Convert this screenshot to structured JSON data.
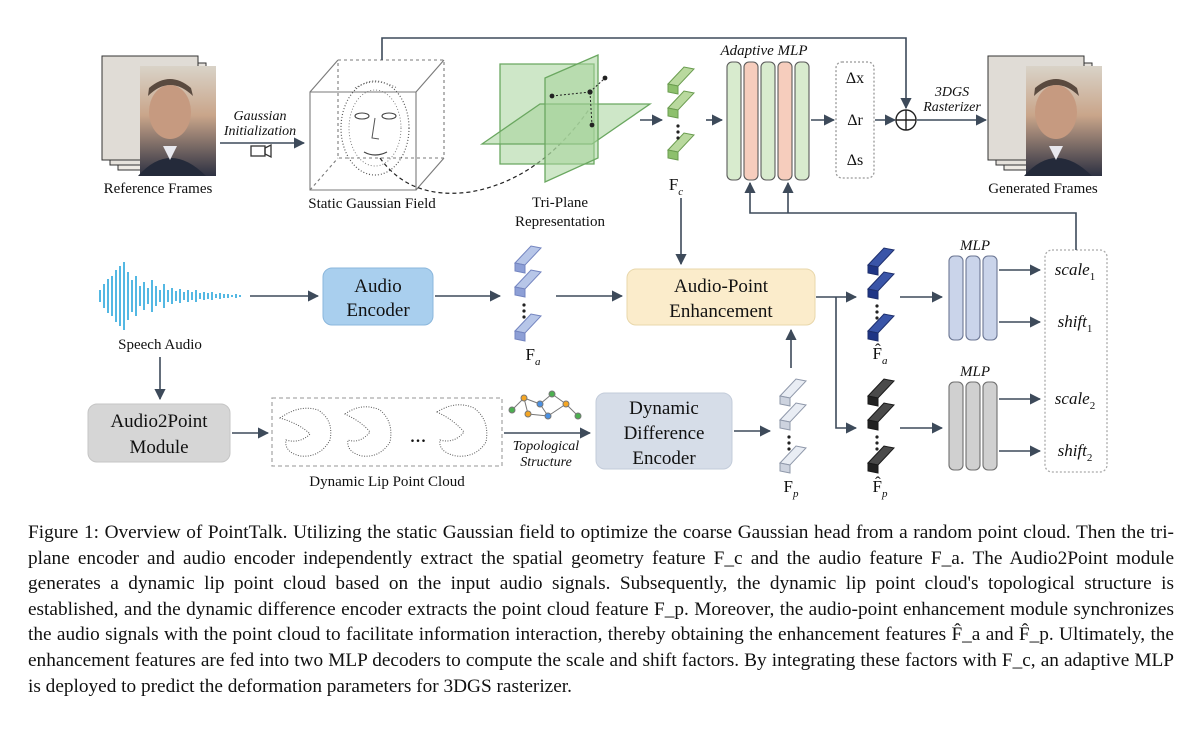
{
  "figure": {
    "reference_frames": "Reference Frames",
    "gaussian_init": [
      "Gaussian",
      "Initialization"
    ],
    "static_field": "Static Gaussian Field",
    "triplane": [
      "Tri-Plane",
      "Representation"
    ],
    "fc_symbol": "F",
    "fc_sub": "c",
    "adaptive_mlp": "Adaptive MLP",
    "deltas": [
      "Δx",
      "Δr",
      "Δs"
    ],
    "rasterizer": [
      "3DGS",
      "Rasterizer"
    ],
    "generated_frames": "Generated Frames",
    "speech_audio": "Speech Audio",
    "audio_encoder": [
      "Audio",
      "Encoder"
    ],
    "fa_symbol": "F",
    "fa_sub": "a",
    "audio_point": [
      "Audio-Point",
      "Enhancement"
    ],
    "fa_hat_sub": "a",
    "fp_hat_sub": "p",
    "mlp1_title": "MLP",
    "mlp2_title": "MLP",
    "scale1": "scale",
    "shift1": "shift",
    "scale2": "scale",
    "shift2": "shift",
    "sub1": "1",
    "sub2": "2",
    "audio2point": [
      "Audio2Point",
      "Module"
    ],
    "lip_cloud": "Dynamic Lip Point Cloud",
    "ellipsis": "...",
    "topological": [
      "Topological",
      "Structure"
    ],
    "dde": [
      "Dynamic",
      "Difference",
      "Encoder"
    ],
    "fp_symbol": "F",
    "fp_sub": "p"
  },
  "caption": {
    "label": "Figure 1:",
    "text": "Overview of PointTalk. Utilizing the static Gaussian field to optimize the coarse Gaussian head from a random point cloud. Then the tri-plane encoder and audio encoder independently extract the spatial geometry feature F_c and the audio feature F_a. The Audio2Point module generates a dynamic lip point cloud based on the input audio signals. Subsequently, the dynamic lip point cloud's topological structure is established, and the dynamic difference encoder extracts the point cloud feature F_p. Moreover, the audio-point enhancement module synchronizes the audio signals with the point cloud to facilitate information interaction, thereby obtaining the enhancement features F̂_a and F̂_p. Ultimately, the enhancement features are fed into two MLP decoders to compute the scale and shift factors. By integrating these factors with F_c, an adaptive MLP is deployed to predict the deformation parameters for 3DGS rasterizer."
  }
}
